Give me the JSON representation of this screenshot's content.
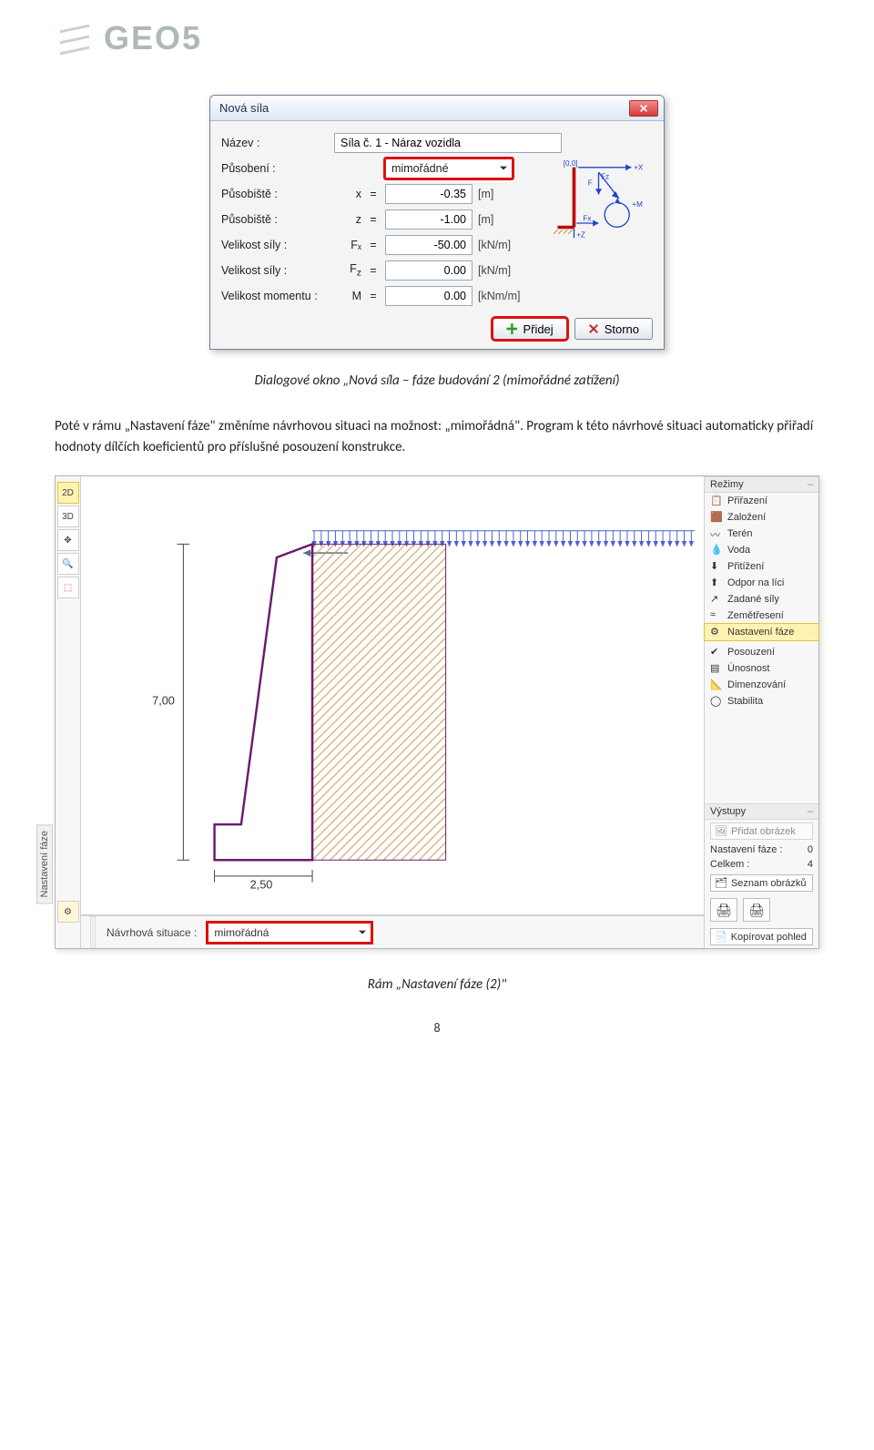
{
  "brand": "GEO5",
  "dialog": {
    "title": "Nová síla",
    "rows": {
      "name_label": "Název :",
      "name_value": "Síla č. 1 - Náraz vozidla",
      "action_label": "Působení :",
      "action_value": "mimořádné",
      "locx_label": "Působiště :",
      "locx_sym": "x",
      "locx_val": "-0.35",
      "locx_unit": "[m]",
      "locz_label": "Působiště :",
      "locz_sym": "z",
      "locz_val": "-1.00",
      "locz_unit": "[m]",
      "fx_label": "Velikost síly :",
      "fx_sym": "Fₓ",
      "fx_val": "-50.00",
      "fx_unit": "[kN/m]",
      "fz_label": "Velikost síly :",
      "fz_sym": "F_z",
      "fz_val": "0.00",
      "fz_unit": "[kN/m]",
      "m_label": "Velikost momentu :",
      "m_sym": "M",
      "m_val": "0.00",
      "m_unit": "[kNm/m]"
    },
    "add_btn": "Přidej",
    "cancel_btn": "Storno",
    "diagram_labels": {
      "origin": "[0,0]",
      "plusX": "+X",
      "Fz": "Fz",
      "F": "F",
      "Fx": "Fx",
      "plusM": "+M",
      "plusZ": "+Z"
    }
  },
  "caption1": "Dialogové okno „Nová síla – fáze budování 2 (mimořádné zatížení)",
  "para_before": "Poté v rámu „Nastavení fáze\" změníme návrhovou situaci na možnost: „mimořádná\". Program k této návrhové situaci automaticky přiřadí hodnoty dílčích koeficientů pro příslušné posouzení konstrukce.",
  "app": {
    "left_tools": [
      "2D",
      "3D",
      "✥",
      "🔍",
      "⬚"
    ],
    "left_gear": "⚙",
    "canvas": {
      "dim_height": "7,00",
      "dim_base": "2,50",
      "wall_stroke": "#6b1a6b",
      "soil_hatch": "#d4a060",
      "load_color": "#4a5fd4"
    },
    "bottom": {
      "label": "Návrhová situace :",
      "value": "mimořádná",
      "side_tab": "Nastavení fáze"
    },
    "right": {
      "sec_regimy": "Režimy",
      "items": [
        {
          "icon": "📋",
          "label": "Přiřazení"
        },
        {
          "icon": "🟫",
          "label": "Založení"
        },
        {
          "icon": "〰",
          "label": "Terén"
        },
        {
          "icon": "💧",
          "label": "Voda"
        },
        {
          "icon": "⬇",
          "label": "Přitížení"
        },
        {
          "icon": "⬆",
          "label": "Odpor na líci"
        },
        {
          "icon": "↗",
          "label": "Zadané síly"
        },
        {
          "icon": "≈",
          "label": "Zemětřesení"
        },
        {
          "icon": "⚙",
          "label": "Nastavení fáze",
          "sel": true
        },
        {
          "icon": "✔",
          "label": "Posouzení"
        },
        {
          "icon": "▤",
          "label": "Únosnost"
        },
        {
          "icon": "📐",
          "label": "Dimenzování"
        },
        {
          "icon": "◯",
          "label": "Stabilita"
        }
      ],
      "sec_vystupy": "Výstupy",
      "add_img_btn": "Přidat obrázek",
      "kv1_label": "Nastavení fáze :",
      "kv1_val": "0",
      "kv2_label": "Celkem :",
      "kv2_val": "4",
      "list_btn": "Seznam obrázků",
      "copy_btn": "Kopírovat pohled"
    }
  },
  "caption2": "Rám „Nastavení fáze (2)\"",
  "page_num": "8",
  "colors": {
    "highlight": "#d11",
    "dialog_blue": "#1c2f50",
    "brand_gray": "#b0b8b8"
  }
}
